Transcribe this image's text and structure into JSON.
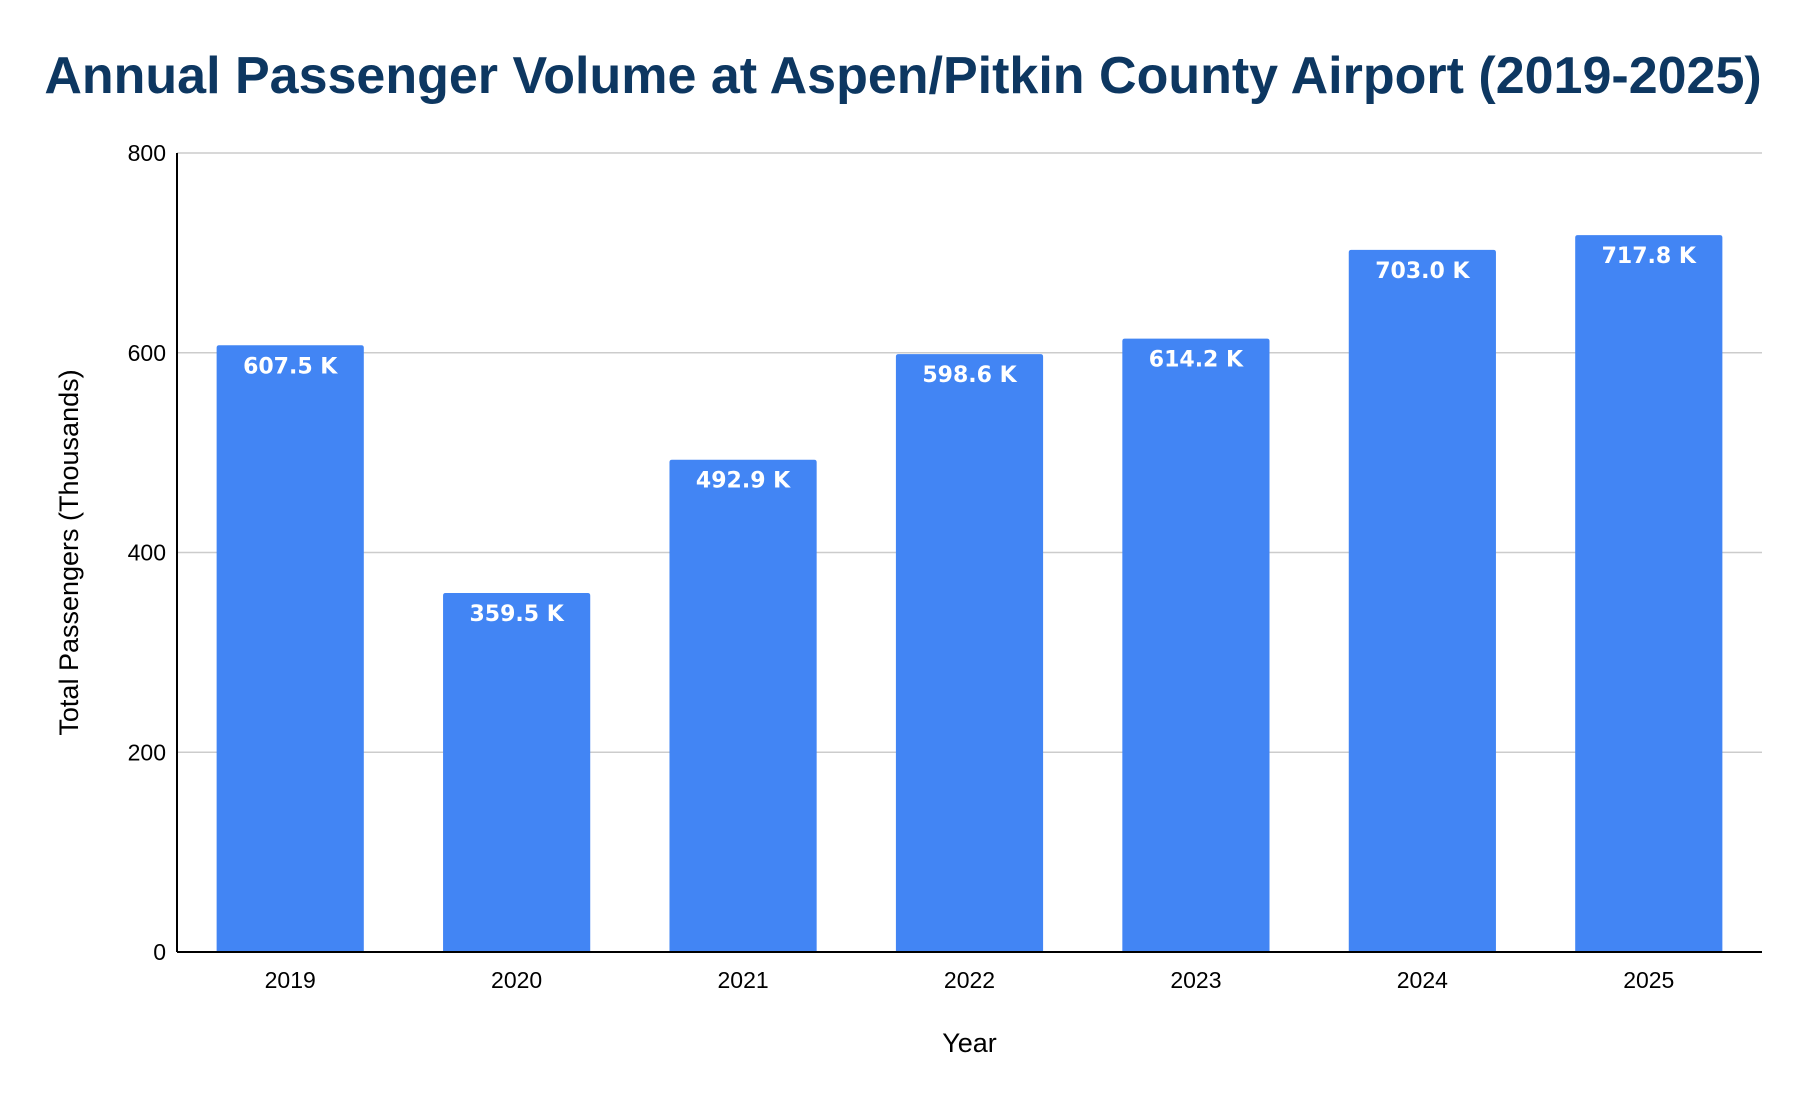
{
  "chart_data": {
    "type": "bar",
    "title": "Annual Passenger Volume at Aspen/Pitkin County Airport (2019-2025)",
    "xlabel": "Year",
    "ylabel": "Total Passengers (Thousands)",
    "categories": [
      "2019",
      "2020",
      "2021",
      "2022",
      "2023",
      "2024",
      "2025"
    ],
    "values": [
      607.5,
      359.5,
      492.9,
      598.6,
      614.2,
      703.0,
      717.8
    ],
    "data_labels": [
      "607.5 K",
      "359.5 K",
      "492.9 K",
      "598.6 K",
      "614.2 K",
      "703.0 K",
      "717.8 K"
    ],
    "ylim": [
      0,
      800
    ],
    "yticks": [
      0,
      200,
      400,
      600,
      800
    ],
    "grid": true,
    "legend": "none",
    "colors": {
      "bar": "#4285f4",
      "title": "#0d3761",
      "grid": "#cccccc",
      "axis": "#000000",
      "data_label": "#ffffff"
    }
  }
}
